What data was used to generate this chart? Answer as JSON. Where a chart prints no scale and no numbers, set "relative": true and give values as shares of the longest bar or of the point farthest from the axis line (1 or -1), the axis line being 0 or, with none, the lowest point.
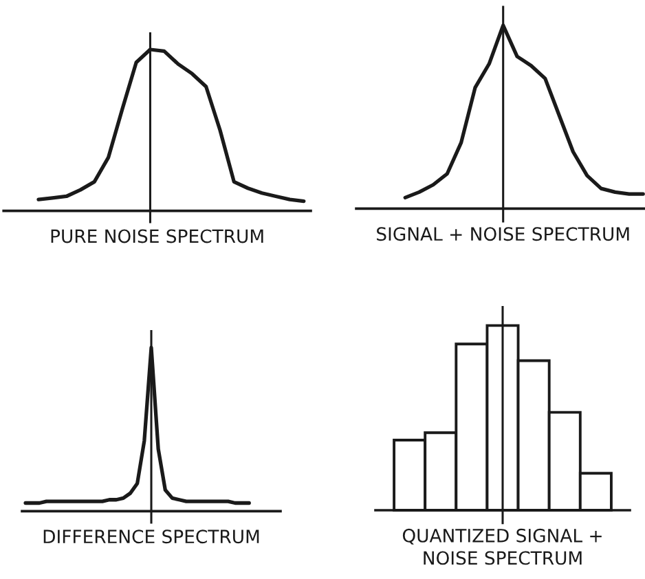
{
  "chart_data": [
    {
      "type": "line",
      "relative": true,
      "xlabel": "PURE NOISE SPECTRUM",
      "categories": [
        null,
        null,
        null,
        null,
        null,
        null,
        null,
        null,
        null,
        null,
        null,
        null,
        null,
        null,
        null,
        null,
        null,
        null,
        null,
        null,
        null,
        null
      ],
      "series": [
        {
          "color": "#1a1a1a",
          "values": [
            null,
            null,
            0.07,
            0.08,
            0.09,
            0.13,
            0.18,
            0.33,
            0.63,
            0.92,
            1.0,
            0.99,
            0.91,
            0.85,
            0.77,
            0.5,
            0.18,
            0.14,
            0.11,
            0.09,
            0.07,
            0.06
          ]
        }
      ]
    },
    {
      "type": "line",
      "relative": true,
      "xlabel": "SIGNAL + NOISE SPECTRUM",
      "categories": [
        null,
        null,
        null,
        null,
        null,
        null,
        null,
        null,
        null,
        null,
        null,
        null,
        null,
        null,
        null,
        null,
        null,
        null,
        null,
        null,
        null
      ],
      "series": [
        {
          "color": "#1a1a1a",
          "values": [
            null,
            null,
            null,
            0.06,
            0.09,
            0.13,
            0.19,
            0.36,
            0.66,
            0.79,
            1.0,
            0.83,
            0.78,
            0.71,
            0.51,
            0.31,
            0.18,
            0.11,
            0.09,
            0.08,
            0.08
          ]
        }
      ]
    },
    {
      "type": "line",
      "relative": true,
      "xlabel": "DIFFERENCE SPECTRUM",
      "categories": [
        null,
        null,
        null,
        null,
        null,
        null,
        null,
        null,
        null,
        null,
        null,
        null,
        null,
        null,
        null,
        null,
        null,
        null,
        null,
        null,
        null,
        null,
        null,
        null,
        null,
        null,
        null,
        null,
        null,
        null,
        null,
        null,
        null,
        null,
        null,
        null,
        null
      ],
      "series": [
        {
          "color": "#1a1a1a",
          "values": [
            0.05,
            0.05,
            0.05,
            0.06,
            0.06,
            0.06,
            0.06,
            0.06,
            0.06,
            0.06,
            0.06,
            0.06,
            0.07,
            0.07,
            0.08,
            0.11,
            0.17,
            0.43,
            1.0,
            0.38,
            0.13,
            0.08,
            0.07,
            0.06,
            0.06,
            0.06,
            0.06,
            0.06,
            0.06,
            0.06,
            0.05,
            0.05,
            0.05,
            null,
            null,
            null,
            null
          ]
        }
      ]
    },
    {
      "type": "bar",
      "relative": true,
      "xlabel": "QUANTIZED SIGNAL +\nNOISE SPECTRUM",
      "categories": [
        null,
        null,
        null,
        null,
        null,
        null,
        null
      ],
      "series": [
        {
          "color": "#ffffff",
          "values": [
            0.38,
            0.42,
            0.9,
            1.0,
            0.81,
            0.53,
            0.2
          ]
        }
      ]
    }
  ]
}
